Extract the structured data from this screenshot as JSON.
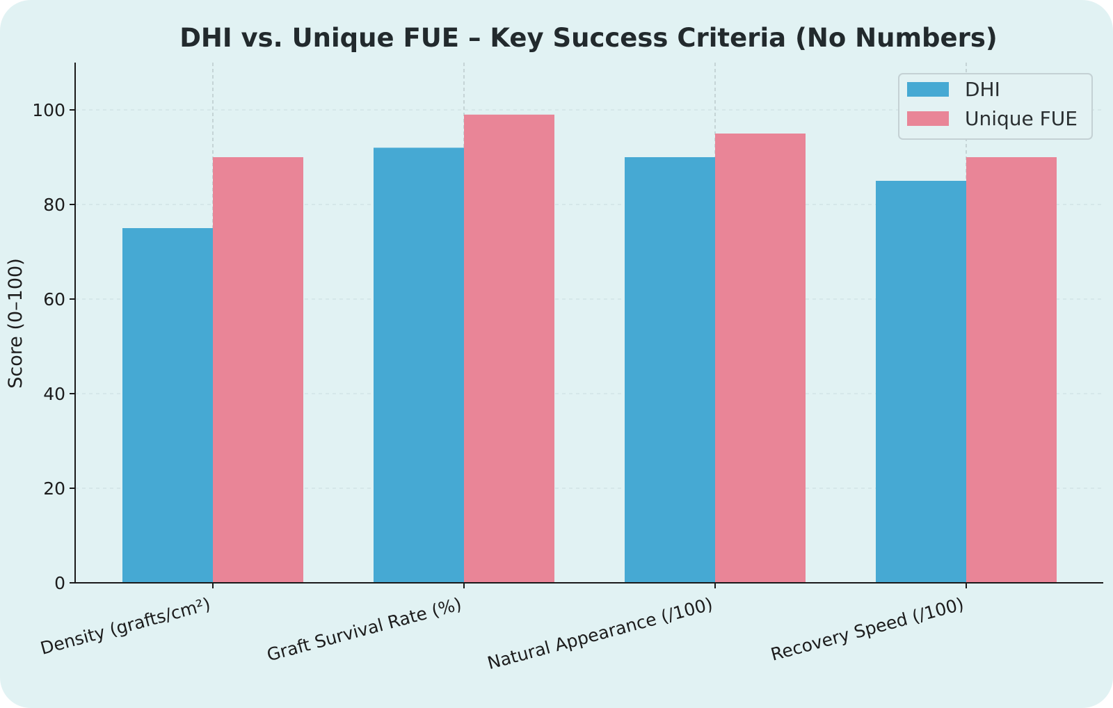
{
  "chart_data": {
    "type": "bar",
    "title": "DHI vs. Unique FUE – Key Success Criteria (No Numbers)",
    "xlabel": "",
    "ylabel": "Score (0–100)",
    "categories": [
      "Density (grafts/cm²)",
      "Graft Survival Rate (%)",
      "Natural Appearance (/100)",
      "Recovery Speed (/100)"
    ],
    "series": [
      {
        "name": "DHI",
        "values": [
          75,
          92,
          90,
          85
        ],
        "color": "#46a9d3"
      },
      {
        "name": "Unique FUE",
        "values": [
          90,
          99,
          95,
          90
        ],
        "color": "#e98597"
      }
    ],
    "ylim": [
      0,
      110
    ],
    "yticks": [
      0,
      20,
      40,
      60,
      80,
      100
    ],
    "grid": true,
    "legend_position": "top-right",
    "background_color": "#e1f2f3"
  }
}
